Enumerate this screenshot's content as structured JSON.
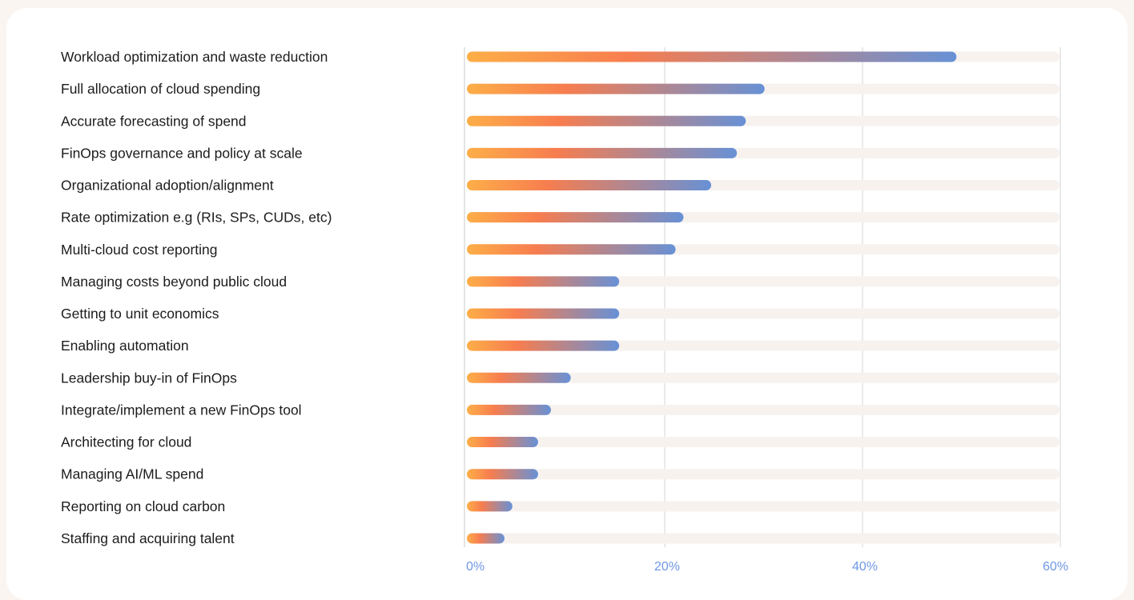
{
  "chart_data": {
    "type": "bar",
    "orientation": "horizontal",
    "categories": [
      "Workload optimization and waste reduction",
      "Full allocation of cloud spending",
      "Accurate forecasting of spend",
      "FinOps governance and policy at scale",
      "Organizational adoption/alignment",
      "Rate optimization e.g (RIs, SPs, CUDs, etc)",
      "Multi-cloud cost reporting",
      "Managing costs beyond public cloud",
      "Getting to unit economics",
      "Enabling automation",
      "Leadership buy-in of FinOps",
      "Integrate/implement a new FinOps tool",
      "Architecting for cloud",
      "Managing AI/ML spend",
      "Reporting on cloud carbon",
      "Staffing and acquiring talent"
    ],
    "values": [
      49.5,
      30.1,
      28.2,
      27.3,
      24.7,
      21.9,
      21.1,
      15.4,
      15.4,
      15.4,
      10.5,
      8.5,
      7.2,
      7.2,
      4.6,
      3.8
    ],
    "xlim": [
      0,
      60
    ],
    "xticks": [
      "0%",
      "20%",
      "40%",
      "60%"
    ],
    "xtick_values": [
      0,
      20,
      40,
      60
    ],
    "title": "",
    "xlabel": "",
    "ylabel": "",
    "grid": "vertical",
    "colors": {
      "gradient_start": "#fdae48",
      "gradient_mid": "#f77d4f",
      "gradient_end": "#6791d6",
      "track": "#f8f2ef",
      "grid": "#d4d4d4",
      "axis": "#c9c9c9",
      "tick_text": "#6f98e6",
      "label_text": "#1c1c1c",
      "page_bg": "#faf5f1",
      "card_bg": "#ffffff"
    }
  }
}
